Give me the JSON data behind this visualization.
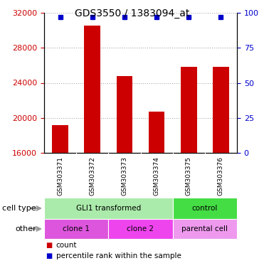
{
  "title": "GDS3550 / 1383094_at",
  "samples": [
    "GSM303371",
    "GSM303372",
    "GSM303373",
    "GSM303374",
    "GSM303375",
    "GSM303376"
  ],
  "counts": [
    19200,
    30500,
    24800,
    20700,
    25800,
    25800
  ],
  "percentile_ranks": [
    97,
    97,
    97,
    97,
    97,
    97
  ],
  "ylim_left": [
    16000,
    32000
  ],
  "yticks_left": [
    16000,
    20000,
    24000,
    28000,
    32000
  ],
  "ylim_right": [
    0,
    100
  ],
  "yticks_right": [
    0,
    25,
    50,
    75,
    100
  ],
  "bar_color": "#cc0000",
  "dot_color": "#0000cc",
  "bar_width": 0.5,
  "cell_type_groups": [
    {
      "label": "GLI1 transformed",
      "start": 0,
      "end": 4,
      "color": "#aaeaaa"
    },
    {
      "label": "control",
      "start": 4,
      "end": 6,
      "color": "#44dd44"
    }
  ],
  "other_groups": [
    {
      "label": "clone 1",
      "start": 0,
      "end": 2,
      "color": "#dd55dd"
    },
    {
      "label": "clone 2",
      "start": 2,
      "end": 4,
      "color": "#ee44ee"
    },
    {
      "label": "parental cell",
      "start": 4,
      "end": 6,
      "color": "#ee99ee"
    }
  ],
  "cell_type_label": "cell type",
  "other_label": "other",
  "legend_count_label": "count",
  "legend_percentile_label": "percentile rank within the sample",
  "bar_color_legend": "#cc0000",
  "dot_color_legend": "#0000cc",
  "tick_label_color_left": "#cc0000",
  "tick_label_color_right": "#0000cc",
  "background_color": "#ffffff",
  "plot_bg_color": "#ffffff",
  "sample_box_color": "#cccccc",
  "grid_color": "#aaaaaa"
}
